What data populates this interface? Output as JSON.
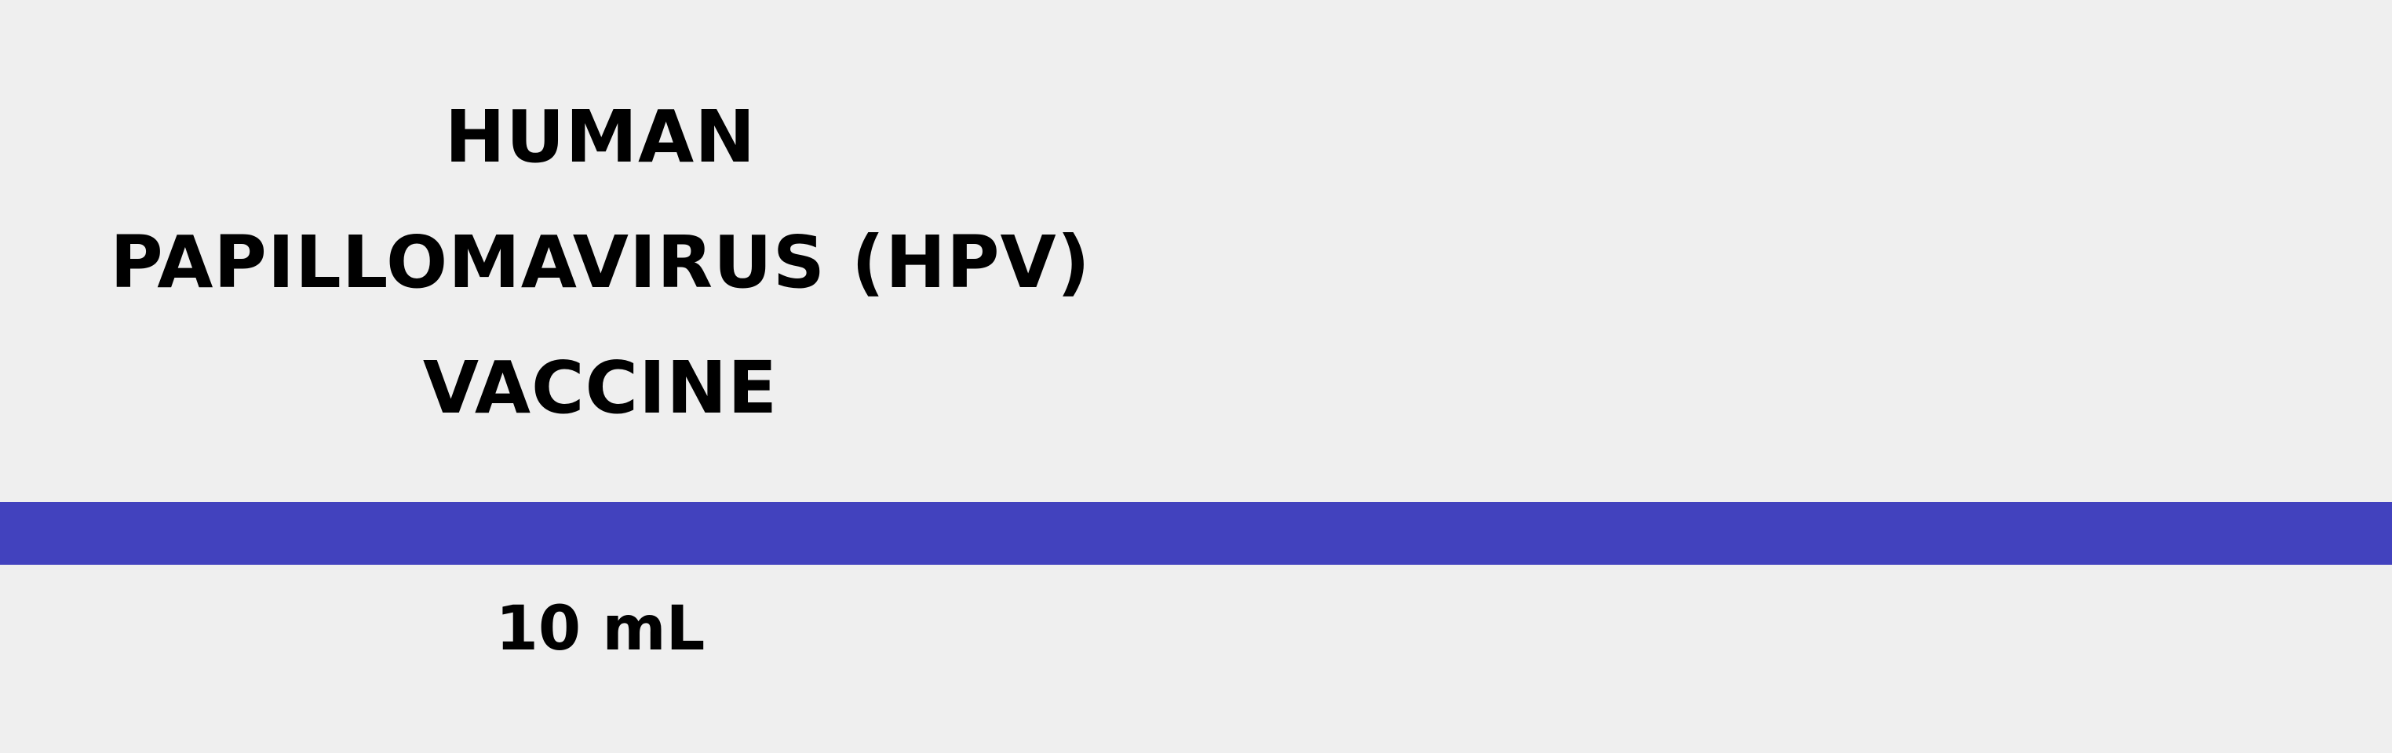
{
  "label": {
    "title_lines": [
      "HUMAN",
      "PAPILLOMAVIRUS (HPV)",
      "VACCINE"
    ],
    "volume": "10 mL",
    "band_color": "#4242be",
    "background_color": "#efefef"
  }
}
